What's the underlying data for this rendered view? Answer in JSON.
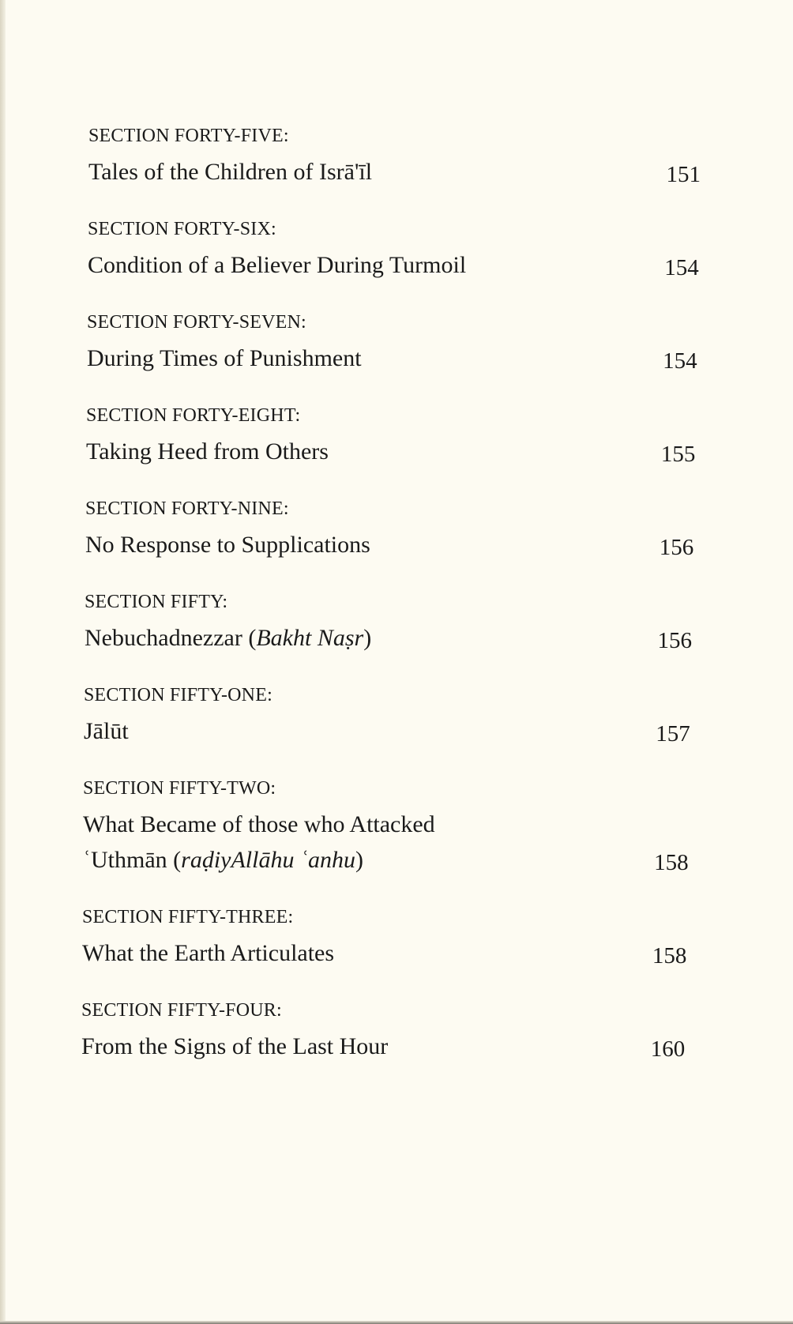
{
  "entries": [
    {
      "heading": "SECTION FORTY-FIVE:",
      "title_lines": [
        [
          "Tales of the Children of Isrā'īl"
        ]
      ],
      "page": "151"
    },
    {
      "heading": "SECTION FORTY-SIX:",
      "title_lines": [
        [
          "Condition of a Believer During Turmoil"
        ]
      ],
      "page": "154"
    },
    {
      "heading": "SECTION FORTY-SEVEN:",
      "title_lines": [
        [
          "During Times of Punishment"
        ]
      ],
      "page": "154"
    },
    {
      "heading": "SECTION FORTY-EIGHT:",
      "title_lines": [
        [
          "Taking Heed from Others"
        ]
      ],
      "page": "155"
    },
    {
      "heading": "SECTION FORTY-NINE:",
      "title_lines": [
        [
          "No Response to Supplications"
        ]
      ],
      "page": "156"
    },
    {
      "heading": "SECTION FIFTY:",
      "title_lines": [
        [
          "Nebuchadnezzar (",
          {
            "i": "Bakht Naṣr"
          },
          ")"
        ]
      ],
      "page": "156"
    },
    {
      "heading": "SECTION FIFTY-ONE:",
      "title_lines": [
        [
          "Jālūt"
        ]
      ],
      "page": "157"
    },
    {
      "heading": "SECTION FIFTY-TWO:",
      "title_lines": [
        [
          "What Became of those who Attacked"
        ],
        [
          "ʿUthmān (",
          {
            "i": "raḍiyAllāhu ʿanhu"
          },
          ")"
        ]
      ],
      "page": "158"
    },
    {
      "heading": "SECTION FIFTY-THREE:",
      "title_lines": [
        [
          "What the Earth Articulates"
        ]
      ],
      "page": "158"
    },
    {
      "heading": "SECTION FIFTY-FOUR:",
      "title_lines": [
        [
          "From the Signs of the Last Hour"
        ]
      ],
      "page": "160"
    }
  ]
}
